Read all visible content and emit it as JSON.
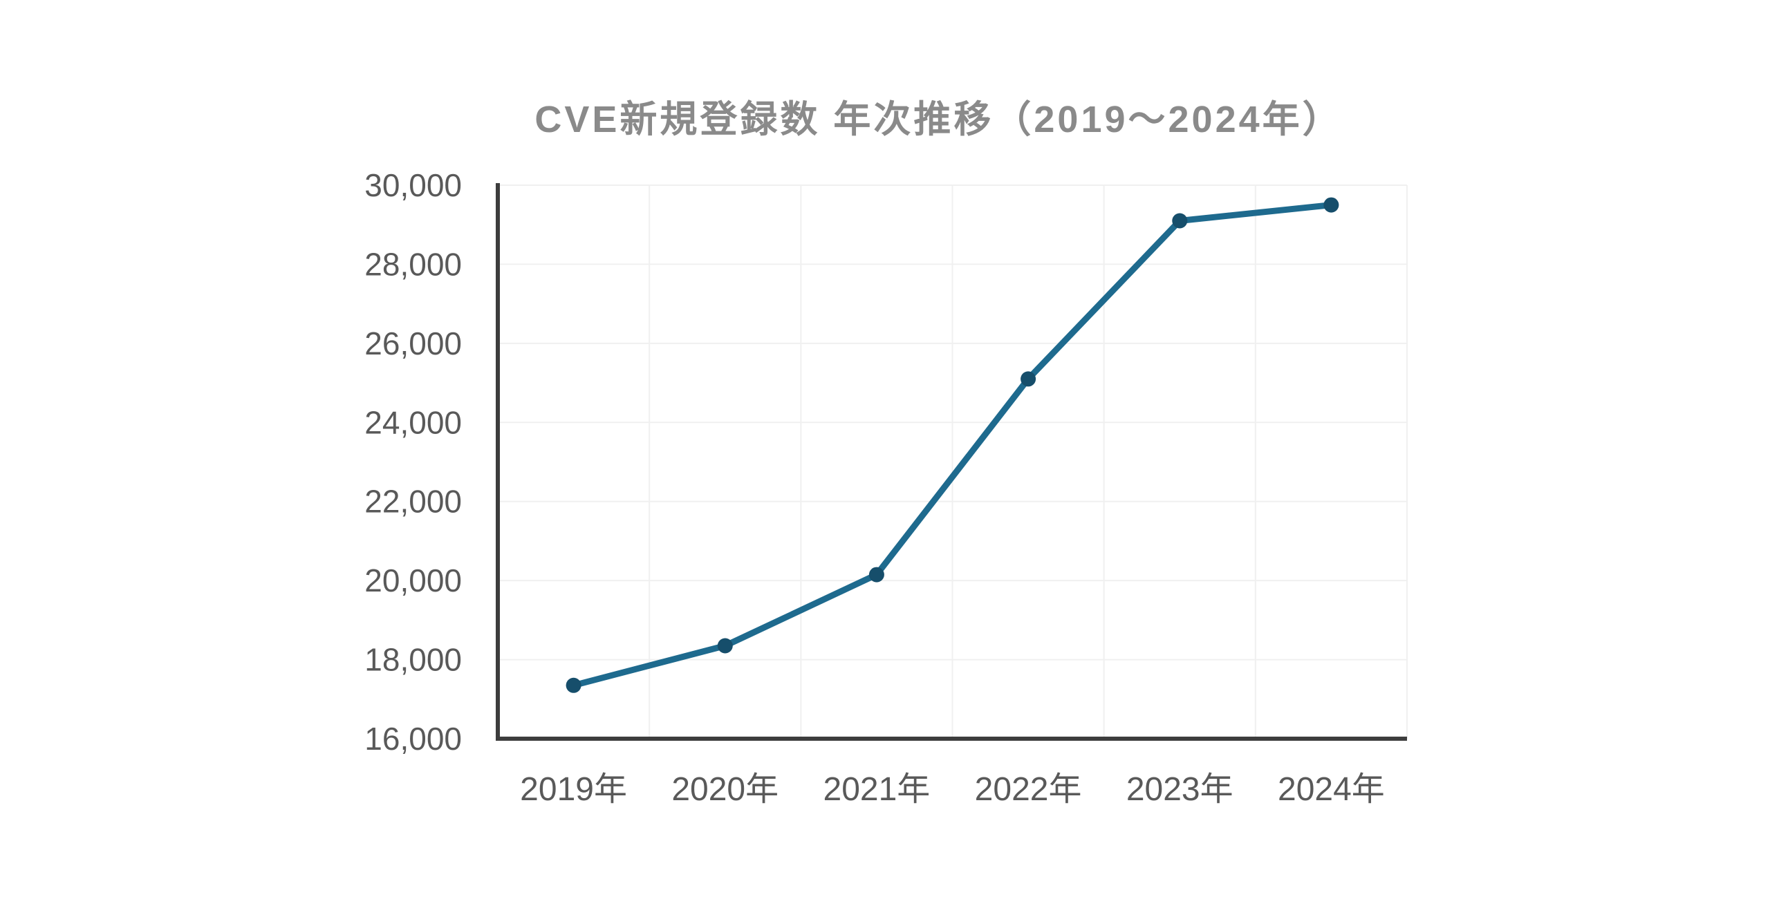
{
  "chart_data": {
    "type": "line",
    "title": "CVE新規登録数 年次推移（2019～2024年）",
    "categories": [
      "2019年",
      "2020年",
      "2021年",
      "2022年",
      "2023年",
      "2024年"
    ],
    "series": [
      {
        "name": "CVE新規登録数",
        "values": [
          17350,
          18350,
          20150,
          25100,
          29100,
          29500
        ]
      }
    ],
    "xlabel": "",
    "ylabel": "",
    "ylim": [
      16000,
      30000
    ],
    "ytick_step": 2000,
    "ytick_labels": [
      "16,000",
      "18,000",
      "20,000",
      "22,000",
      "24,000",
      "26,000",
      "28,000",
      "30,000"
    ],
    "grid": true,
    "legend": "none",
    "colors": {
      "line": "#1e6a8e",
      "marker": "#164e6b",
      "axis": "#3d3d3d",
      "grid": "#f0f0f0",
      "tick_label": "#595959",
      "title": "#8a8a8a",
      "background": "#ffffff"
    }
  }
}
